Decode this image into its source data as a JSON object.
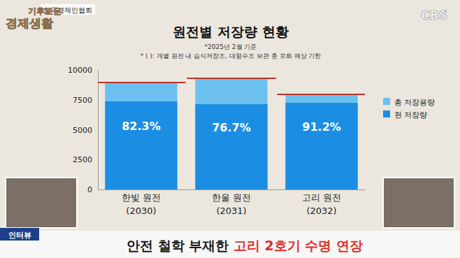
{
  "chart_data": {
    "type": "bar",
    "title": "원전별 저장량 현황",
    "subtitle": "*2025년 2월 기준",
    "note": "* ( ): 개별 원전 내 습식저장조, 대형수조 보관 총 포화 예상 기한",
    "categories": [
      "한빛 원전\n(2030)",
      "한울 원전\n(2031)",
      "고리 원전\n(2032)"
    ],
    "series": [
      {
        "name": "총 저장용량",
        "color": "#6cc0ef",
        "values": [
          8950,
          9300,
          7950
        ]
      },
      {
        "name": "현 저장량",
        "color": "#1b8ee3",
        "values": [
          7366,
          7133,
          7250
        ],
        "percent_labels": [
          "82.3%",
          "76.7%",
          "91.2%"
        ]
      }
    ],
    "ylim": [
      0,
      10000
    ],
    "yticks": [
      0,
      2500,
      5000,
      7500,
      10000
    ],
    "stacked": false,
    "grid": false,
    "legend": "right"
  },
  "broadcast": {
    "source": "한국경제인협회",
    "channel": "CBS",
    "program": [
      "기후로운",
      "경제생활"
    ],
    "tag": "인터뷰",
    "headline": [
      "안전 철학 부재한 ",
      "고리 2호기 수명 연장"
    ]
  }
}
